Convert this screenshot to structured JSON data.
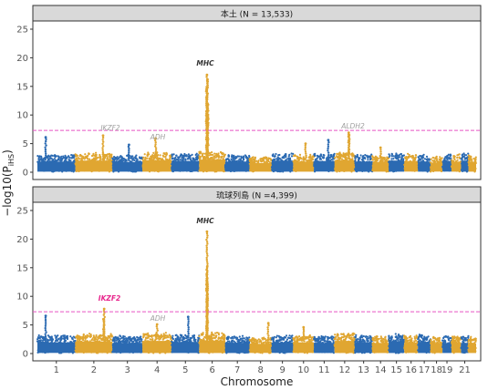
{
  "chart_data": {
    "type": "scatter",
    "xlabel": "Chromosome",
    "ylabel": "−log10(P",
    "ylabel_sub": "iHS",
    "ylabel_close": ")",
    "ylim": [
      0,
      25
    ],
    "yticks": [
      0,
      5,
      10,
      15,
      20,
      25
    ],
    "threshold": 7.3,
    "threshold_color": "#e754c4",
    "colors": {
      "odd": "#2b6ab2",
      "even": "#e0a631"
    },
    "chromosomes": [
      "1",
      "2",
      "3",
      "4",
      "5",
      "6",
      "7",
      "8",
      "9",
      "10",
      "11",
      "12",
      "13",
      "14",
      "15",
      "16",
      "17",
      "18",
      "19",
      "20",
      "21",
      "22"
    ],
    "chromosome_tick_labels": [
      "1",
      "2",
      "3",
      "4",
      "5",
      "6",
      "7",
      "8",
      "9",
      "10",
      "11",
      "12",
      "13",
      "14",
      "15",
      "16",
      "17",
      "18",
      "19",
      "21"
    ],
    "grid": false,
    "panels": [
      {
        "strip": "本土 (N = 13,533)",
        "base_level": [
          2.2,
          2.4,
          2.1,
          2.5,
          2.3,
          2.6,
          2.2,
          1.9,
          2.4,
          2.2,
          2.3,
          2.5,
          2.2,
          2.1,
          2.4,
          2.3,
          2.2,
          2.0,
          2.3,
          2.2,
          2.4,
          2.1
        ],
        "peaks": [
          {
            "chr": "1",
            "pos": 0.22,
            "y": 6.1
          },
          {
            "chr": "2",
            "pos": 0.75,
            "y": 6.4
          },
          {
            "chr": "3",
            "pos": 0.55,
            "y": 4.8
          },
          {
            "chr": "4",
            "pos": 0.45,
            "y": 5.9
          },
          {
            "chr": "6",
            "pos": 0.3,
            "y": 17.0
          },
          {
            "chr": "6",
            "pos": 0.32,
            "y": 16.2
          },
          {
            "chr": "6",
            "pos": 0.28,
            "y": 14.5
          },
          {
            "chr": "6",
            "pos": 0.34,
            "y": 11.8
          },
          {
            "chr": "6",
            "pos": 0.31,
            "y": 9.3
          },
          {
            "chr": "10",
            "pos": 0.6,
            "y": 5.0
          },
          {
            "chr": "11",
            "pos": 0.7,
            "y": 5.6
          },
          {
            "chr": "12",
            "pos": 0.7,
            "y": 6.9
          },
          {
            "chr": "12",
            "pos": 0.72,
            "y": 6.5
          },
          {
            "chr": "14",
            "pos": 0.5,
            "y": 4.3
          }
        ],
        "annotations": [
          {
            "text": "MHC",
            "color": "#333333",
            "bold": true
          },
          {
            "text": "IKZF2",
            "color": "#a0a0a0",
            "bold": false
          },
          {
            "text": "ADH",
            "color": "#a0a0a0",
            "bold": false
          },
          {
            "text": "ALDH2",
            "color": "#a0a0a0",
            "bold": false
          }
        ]
      },
      {
        "strip": "琉球列島 (N =4,399)",
        "base_level": [
          2.3,
          2.5,
          2.2,
          2.6,
          2.4,
          2.7,
          2.2,
          2.0,
          2.3,
          2.3,
          2.2,
          2.6,
          2.3,
          2.2,
          2.5,
          2.3,
          2.4,
          2.1,
          2.2,
          2.3,
          2.2,
          2.1
        ],
        "peaks": [
          {
            "chr": "1",
            "pos": 0.22,
            "y": 6.6
          },
          {
            "chr": "2",
            "pos": 0.78,
            "y": 7.8
          },
          {
            "chr": "2",
            "pos": 0.76,
            "y": 6.0
          },
          {
            "chr": "4",
            "pos": 0.5,
            "y": 5.1
          },
          {
            "chr": "5",
            "pos": 0.6,
            "y": 6.4
          },
          {
            "chr": "6",
            "pos": 0.3,
            "y": 21.3
          },
          {
            "chr": "6",
            "pos": 0.31,
            "y": 15.2
          },
          {
            "chr": "6",
            "pos": 0.29,
            "y": 13.8
          },
          {
            "chr": "6",
            "pos": 0.32,
            "y": 12.1
          },
          {
            "chr": "6",
            "pos": 0.3,
            "y": 10.2
          },
          {
            "chr": "8",
            "pos": 0.85,
            "y": 5.3
          },
          {
            "chr": "10",
            "pos": 0.5,
            "y": 4.6
          }
        ],
        "annotations": [
          {
            "text": "MHC",
            "color": "#333333",
            "bold": true
          },
          {
            "text": "IKZF2",
            "color": "#e8258c",
            "bold": true
          },
          {
            "text": "ADH",
            "color": "#a0a0a0",
            "bold": false
          }
        ]
      }
    ]
  }
}
